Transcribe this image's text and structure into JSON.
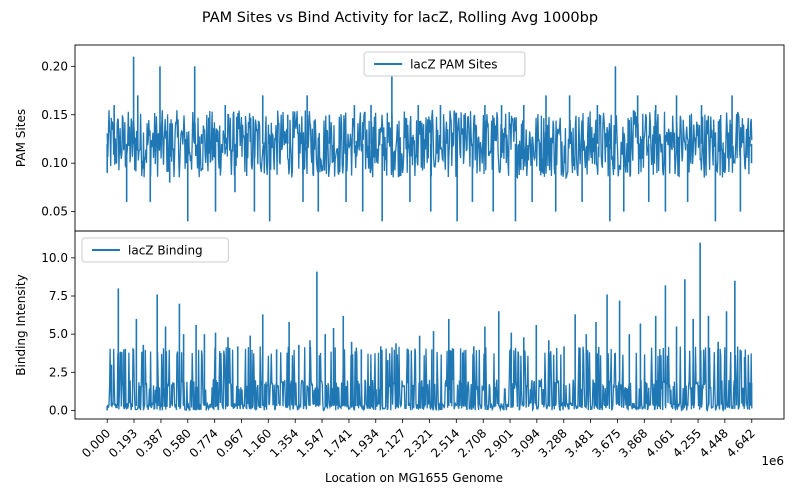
{
  "chart_data": {
    "suptitle": "PAM Sites vs Bind Activity for lacZ, Rolling Avg 1000bp",
    "shared_x": {
      "label": "Location on MG1655 Genome",
      "offset_text": "1e6",
      "xlim": [
        -0.232,
        4.874
      ],
      "ticks": [
        0.0,
        0.193,
        0.387,
        0.58,
        0.774,
        0.967,
        1.16,
        1.354,
        1.547,
        1.741,
        1.934,
        2.127,
        2.321,
        2.514,
        2.708,
        2.901,
        3.094,
        3.288,
        3.481,
        3.675,
        3.868,
        4.061,
        4.255,
        4.448,
        4.642
      ],
      "tick_labels": [
        "0.000",
        "0.193",
        "0.387",
        "0.580",
        "0.774",
        "0.967",
        "1.160",
        "1.354",
        "1.547",
        "1.741",
        "1.934",
        "2.127",
        "2.321",
        "2.514",
        "2.708",
        "2.901",
        "3.094",
        "3.288",
        "3.481",
        "3.675",
        "3.868",
        "4.061",
        "4.255",
        "4.448",
        "4.642"
      ]
    },
    "charts": [
      {
        "type": "line",
        "ylabel": "PAM Sites",
        "ylim": [
          0.03,
          0.222
        ],
        "yticks": [
          0.05,
          0.1,
          0.15,
          0.2
        ],
        "ytick_labels": [
          "0.05",
          "0.10",
          "0.15",
          "0.20"
        ],
        "legend": "top-center",
        "series": [
          {
            "name": "lacZ PAM Sites",
            "color": "#1f77b4",
            "baseline": 0.12,
            "band": [
              0.085,
              0.155
            ],
            "x": [
              0.0,
              0.05,
              0.14,
              0.19,
              0.22,
              0.31,
              0.38,
              0.45,
              0.58,
              0.63,
              0.68,
              0.78,
              0.85,
              0.92,
              1.06,
              1.12,
              1.17,
              1.3,
              1.41,
              1.44,
              1.52,
              1.6,
              1.72,
              1.78,
              1.84,
              1.9,
              1.98,
              2.05,
              2.18,
              2.24,
              2.33,
              2.4,
              2.52,
              2.57,
              2.63,
              2.72,
              2.78,
              2.84,
              2.94,
              3.0,
              3.06,
              3.16,
              3.23,
              3.33,
              3.42,
              3.53,
              3.62,
              3.66,
              3.72,
              3.82,
              3.9,
              3.95,
              4.02,
              4.1,
              4.18,
              4.28,
              4.38,
              4.5,
              4.56,
              4.64
            ],
            "y": [
              0.09,
              0.16,
              0.06,
              0.21,
              0.17,
              0.06,
              0.2,
              0.08,
              0.04,
              0.2,
              0.13,
              0.05,
              0.16,
              0.07,
              0.05,
              0.17,
              0.04,
              0.15,
              0.06,
              0.17,
              0.05,
              0.15,
              0.06,
              0.16,
              0.05,
              0.16,
              0.04,
              0.19,
              0.06,
              0.16,
              0.05,
              0.16,
              0.04,
              0.15,
              0.06,
              0.16,
              0.05,
              0.16,
              0.04,
              0.16,
              0.06,
              0.17,
              0.05,
              0.17,
              0.06,
              0.16,
              0.04,
              0.2,
              0.05,
              0.17,
              0.06,
              0.16,
              0.05,
              0.17,
              0.06,
              0.16,
              0.04,
              0.17,
              0.05,
              0.1
            ]
          }
        ]
      },
      {
        "type": "line",
        "ylabel": "Binding Intensity",
        "ylim": [
          -0.56,
          11.76
        ],
        "yticks": [
          0.0,
          2.5,
          5.0,
          7.5,
          10.0
        ],
        "ytick_labels": [
          "0.0",
          "2.5",
          "5.0",
          "7.5",
          "10.0"
        ],
        "legend": "top-left",
        "series": [
          {
            "name": "lacZ Binding",
            "color": "#1f77b4",
            "baseline": 0.3,
            "x": [
              0.0,
              0.03,
              0.08,
              0.12,
              0.21,
              0.26,
              0.36,
              0.42,
              0.52,
              0.55,
              0.64,
              0.7,
              0.78,
              0.87,
              0.94,
              1.03,
              1.12,
              1.22,
              1.31,
              1.38,
              1.46,
              1.51,
              1.57,
              1.63,
              1.7,
              1.76,
              1.83,
              1.91,
              1.97,
              2.02,
              2.08,
              2.17,
              2.25,
              2.35,
              2.46,
              2.56,
              2.64,
              2.72,
              2.82,
              2.91,
              3.0,
              3.09,
              3.18,
              3.29,
              3.37,
              3.45,
              3.52,
              3.6,
              3.69,
              3.76,
              3.84,
              3.95,
              4.02,
              4.1,
              4.16,
              4.22,
              4.27,
              4.33,
              4.4,
              4.46,
              4.52,
              4.59,
              4.64
            ],
            "y": [
              0.0,
              3.0,
              8.0,
              4.0,
              6.0,
              4.3,
              7.6,
              5.5,
              7.0,
              5.0,
              5.6,
              5.0,
              5.1,
              4.8,
              4.2,
              4.9,
              6.3,
              4.0,
              5.8,
              4.3,
              4.6,
              9.1,
              5.0,
              5.4,
              6.2,
              4.5,
              4.0,
              2.0,
              4.2,
              3.3,
              4.4,
              3.7,
              4.9,
              5.2,
              6.0,
              3.8,
              4.2,
              5.5,
              6.5,
              5.1,
              4.8,
              5.6,
              4.6,
              4.2,
              6.3,
              5.0,
              5.8,
              7.6,
              7.2,
              5.0,
              5.7,
              6.2,
              8.2,
              5.5,
              8.6,
              6.0,
              11.0,
              6.2,
              4.5,
              6.5,
              8.5,
              3.5,
              1.8
            ]
          }
        ]
      }
    ]
  }
}
